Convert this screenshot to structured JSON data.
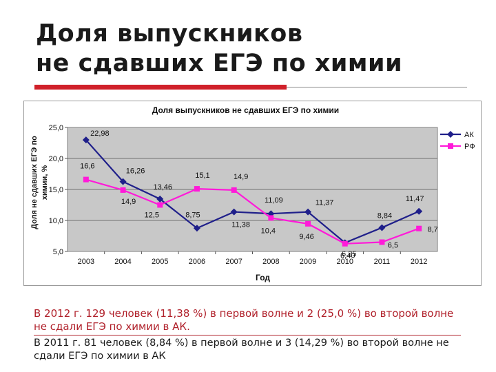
{
  "slide": {
    "title_line1": "Доля выпускников",
    "title_line2": "не сдавших ЕГЭ по химии",
    "accent_color": "#d0202a",
    "paragraph1": "В 2012 г. 129 человек (11,38 %) в первой волне и 2 (25,0 %) во второй волне не сдали ЕГЭ по химии в АК.",
    "paragraph2": "В 2011 г. 81 человек (8,84 %) в первой волне и 3 (14,29 %) во второй волне не сдали ЕГЭ по химии в АК"
  },
  "chart_data": {
    "type": "line",
    "title": "Доля выпускников не сдавших ЕГЭ по химии",
    "xlabel": "Год",
    "ylabel": "Доля не сдавших ЕГЭ по химии, %",
    "categories": [
      "2003",
      "2004",
      "2005",
      "2006",
      "2007",
      "2008",
      "2009",
      "2010",
      "2011",
      "2012"
    ],
    "ylim": [
      5,
      25
    ],
    "yticks": [
      "5,0",
      "10,0",
      "15,0",
      "20,0",
      "25,0"
    ],
    "grid": true,
    "legend_position": "top-right",
    "plot_background": "#c8c8c8",
    "series": [
      {
        "name": "АК",
        "color": "#1f1f8a",
        "marker": "diamond",
        "values": [
          22.98,
          16.26,
          13.46,
          8.75,
          11.38,
          11.09,
          11.37,
          6.4,
          8.84,
          11.47
        ],
        "labels": [
          "22,98",
          "16,26",
          "13,46",
          "8,75",
          "11,38",
          "11,09",
          "11,37",
          "6,40",
          "8,84",
          "11,47"
        ]
      },
      {
        "name": "РФ",
        "color": "#ff1ad9",
        "marker": "square",
        "values": [
          16.6,
          14.9,
          12.5,
          15.1,
          14.9,
          10.4,
          9.46,
          6.25,
          6.5,
          8.7
        ],
        "labels": [
          "16,6",
          "14,9",
          "12,5",
          "15,1",
          "14,9",
          "10,4",
          "9,46",
          "6,25",
          "6,5",
          "8,7"
        ]
      }
    ]
  }
}
